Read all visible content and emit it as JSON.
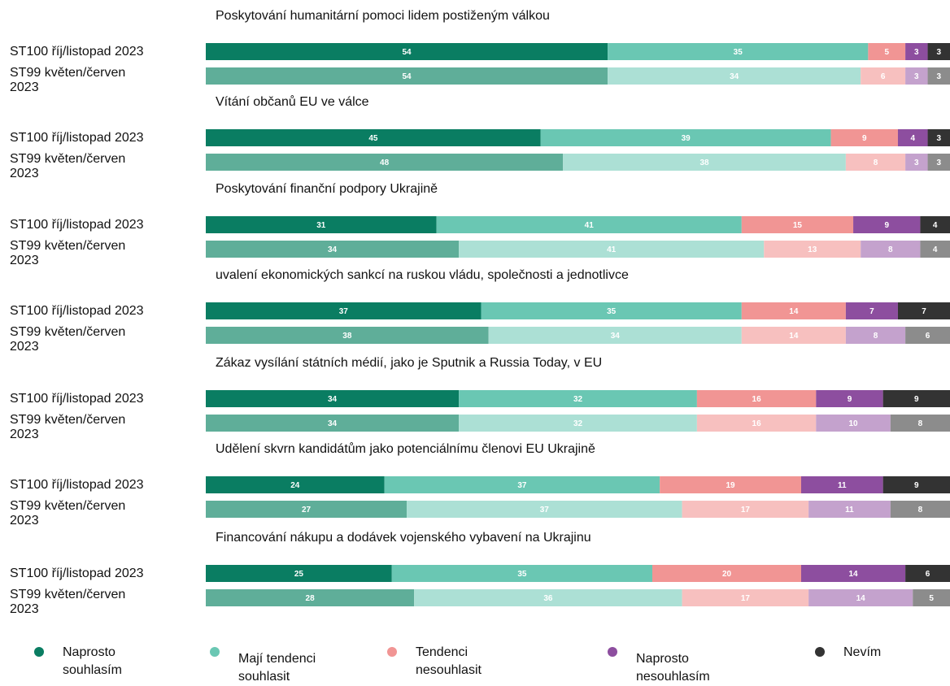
{
  "chart_data": {
    "type": "bar",
    "orientation": "horizontal",
    "stacked": true,
    "xlim": [
      0,
      100
    ],
    "series": [
      {
        "name": "Naprosto souhlasím",
        "colors": [
          "#0a7d62",
          "#5fae99"
        ]
      },
      {
        "name": "Mají tendenci souhlasit",
        "colors": [
          "#6ac7b3",
          "#ace0d5"
        ]
      },
      {
        "name": "Tendenci nesouhlasit",
        "colors": [
          "#f19594",
          "#f7c0bf"
        ]
      },
      {
        "name": "Naprosto nesouhlasím",
        "colors": [
          "#8d4e9f",
          "#c4a2cd"
        ]
      },
      {
        "name": "Nevím",
        "colors": [
          "#333333",
          "#8c8c8c"
        ]
      }
    ],
    "groups": [
      {
        "title": "Poskytování humanitární pomoci lidem postiženým válkou",
        "categories": [
          "ST100 říj/listopad 2023",
          "ST99 květen/červen 2023"
        ],
        "values": [
          [
            54,
            35,
            5,
            3,
            3
          ],
          [
            54,
            34,
            6,
            3,
            3
          ]
        ]
      },
      {
        "title": "Vítání občanů EU ve válce",
        "categories": [
          "ST100 říj/listopad 2023",
          "ST99 květen/červen 2023"
        ],
        "values": [
          [
            45,
            39,
            9,
            4,
            3
          ],
          [
            48,
            38,
            8,
            3,
            3
          ]
        ]
      },
      {
        "title": "Poskytování finanční podpory Ukrajině",
        "categories": [
          "ST100 říj/listopad 2023",
          "ST99 květen/červen 2023"
        ],
        "values": [
          [
            31,
            41,
            15,
            9,
            4
          ],
          [
            34,
            41,
            13,
            8,
            4
          ]
        ]
      },
      {
        "title": "uvalení ekonomických sankcí na ruskou vládu, společnosti a jednotlivce",
        "categories": [
          "ST100 říj/listopad 2023",
          "ST99 květen/červen 2023"
        ],
        "values": [
          [
            37,
            35,
            14,
            7,
            7
          ],
          [
            38,
            34,
            14,
            8,
            6
          ]
        ]
      },
      {
        "title": "Zákaz vysílání státních médií, jako je Sputnik a Russia Today, v EU",
        "categories": [
          "ST100 říj/listopad 2023",
          "ST99 květen/červen 2023"
        ],
        "values": [
          [
            34,
            32,
            16,
            9,
            9
          ],
          [
            34,
            32,
            16,
            10,
            8
          ]
        ]
      },
      {
        "title": "Udělení skvrn kandidátům jako potenciálnímu členovi EU Ukrajině",
        "categories": [
          "ST100 říj/listopad 2023",
          "ST99 květen/červen 2023"
        ],
        "values": [
          [
            24,
            37,
            19,
            11,
            9
          ],
          [
            27,
            37,
            17,
            11,
            8
          ]
        ]
      },
      {
        "title": "Financování nákupu a dodávek vojenského vybavení na Ukrajinu",
        "categories": [
          "ST100 říj/listopad 2023",
          "ST99 květen/červen 2023"
        ],
        "values": [
          [
            25,
            35,
            20,
            14,
            6
          ],
          [
            28,
            36,
            17,
            14,
            5
          ]
        ]
      }
    ]
  }
}
